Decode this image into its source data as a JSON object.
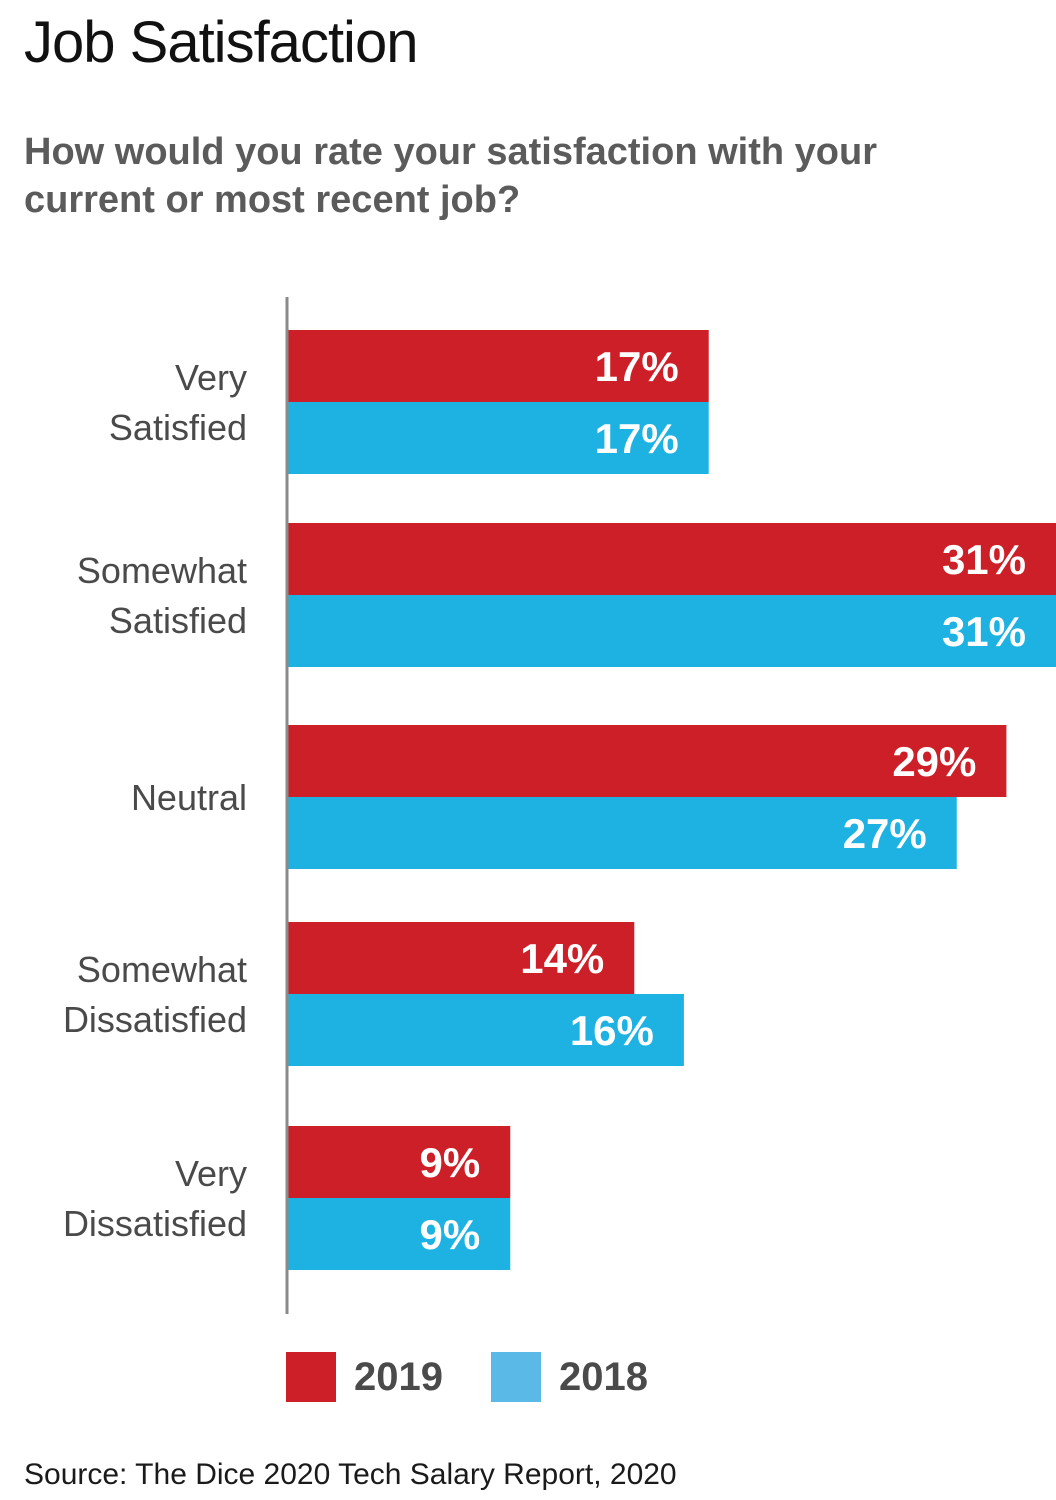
{
  "header": {
    "title": "Job Satisfaction",
    "subtitle": "How would you rate your satisfaction with your current or most recent job?"
  },
  "footer": {
    "source": "Source: The Dice 2020 Tech Salary Report, 2020"
  },
  "colors": {
    "series_2019": "#cc1f27",
    "series_2018": "#1eb2e3",
    "legend_2018": "#5ab9e6",
    "axis": "#8a8a8a"
  },
  "chart_data": {
    "type": "bar",
    "orientation": "horizontal",
    "title": "Job Satisfaction",
    "subtitle": "How would you rate your satisfaction with your current or most recent job?",
    "categories": [
      [
        "Very",
        "Satisfied"
      ],
      [
        "Somewhat",
        "Satisfied"
      ],
      [
        "Neutral"
      ],
      [
        "Somewhat",
        "Dissatisfied"
      ],
      [
        "Very",
        "Dissatisfied"
      ]
    ],
    "series": [
      {
        "name": "2019",
        "values": [
          17,
          31,
          29,
          14,
          9
        ],
        "labels": [
          "17%",
          "31%",
          "29%",
          "14%",
          "9%"
        ]
      },
      {
        "name": "2018",
        "values": [
          17,
          31,
          27,
          16,
          9
        ],
        "labels": [
          "17%",
          "31%",
          "27%",
          "16%",
          "9%"
        ]
      }
    ],
    "unit": "%",
    "xlim": [
      0,
      31
    ],
    "grid": false,
    "legend": "bottom"
  }
}
